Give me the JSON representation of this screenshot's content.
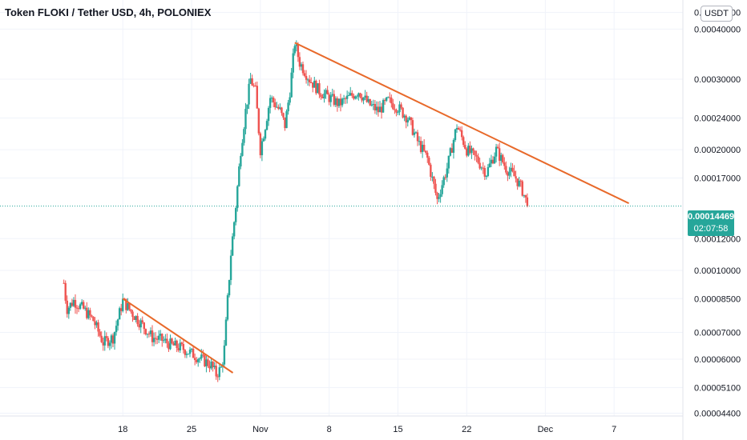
{
  "header": {
    "title": "Token FLOKI / Tether USD, 4h, POLONIEX"
  },
  "currency_button": {
    "label": "USDT"
  },
  "price_tag": {
    "price": "0.00014469",
    "countdown": "02:07:58",
    "color": "#26a69a"
  },
  "colors": {
    "up": "#26a69a",
    "down": "#ef5350",
    "trendline": "#e8692a",
    "grid": "#f0f3fa"
  },
  "chart_data": {
    "type": "candlestick",
    "symbol": "Token FLOKI / Tether USD",
    "interval": "4h",
    "exchange": "POLONIEX",
    "y_scale": "log",
    "y_ticks": [
      "0.00044000",
      "0.00040000",
      "0.00030000",
      "0.00024000",
      "0.00020000",
      "0.00017000",
      "0.00012000",
      "0.00010000",
      "0.00008500",
      "0.00007000",
      "0.00006000",
      "0.00005100",
      "0.00004400"
    ],
    "y_tick_values": [
      0.00044,
      0.0004,
      0.0003,
      0.00024,
      0.0002,
      0.00017,
      0.00012,
      0.0001,
      8.5e-05,
      7e-05,
      6e-05,
      5.1e-05,
      4.4e-05
    ],
    "x_ticks": [
      "18",
      "25",
      "Nov",
      "8",
      "15",
      "22",
      "Dec",
      "7"
    ],
    "x_tick_days": [
      18,
      25,
      32,
      39,
      46,
      53,
      61,
      68
    ],
    "ylim": [
      4.33e-05,
      0.00046
    ],
    "xlim_days": [
      5.5,
      75.0
    ],
    "last_price": 0.00014469,
    "trendlines": [
      {
        "from": {
          "day": 18.0,
          "price": 8.5e-05
        },
        "to": {
          "day": 29.2,
          "price": 5.55e-05
        }
      },
      {
        "from": {
          "day": 35.5,
          "price": 0.00037
        },
        "to": {
          "day": 69.5,
          "price": 0.000147
        }
      }
    ],
    "price_path": [
      [
        12.0,
        9.3e-05
      ],
      [
        12.3,
        8e-05
      ],
      [
        13.0,
        8.4e-05
      ],
      [
        14.0,
        8e-05
      ],
      [
        15.0,
        7.5e-05
      ],
      [
        16.0,
        6.6e-05
      ],
      [
        17.0,
        6.8e-05
      ],
      [
        18.0,
        8.4e-05
      ],
      [
        19.0,
        7.8e-05
      ],
      [
        20.0,
        7.3e-05
      ],
      [
        21.0,
        6.8e-05
      ],
      [
        22.0,
        6.7e-05
      ],
      [
        23.0,
        6.5e-05
      ],
      [
        24.0,
        6.4e-05
      ],
      [
        25.0,
        6.2e-05
      ],
      [
        26.0,
        6e-05
      ],
      [
        27.0,
        5.8e-05
      ],
      [
        27.5,
        5.5e-05
      ],
      [
        28.0,
        5.7e-05
      ],
      [
        28.3,
        6.2e-05
      ],
      [
        28.6,
        8e-05
      ],
      [
        29.0,
        0.00011
      ],
      [
        29.5,
        0.000145
      ],
      [
        30.0,
        0.0002
      ],
      [
        30.5,
        0.00025
      ],
      [
        31.0,
        0.0003
      ],
      [
        31.5,
        0.00028
      ],
      [
        32.0,
        0.0002
      ],
      [
        32.5,
        0.00023
      ],
      [
        33.0,
        0.00027
      ],
      [
        34.0,
        0.00025
      ],
      [
        34.5,
        0.00023
      ],
      [
        35.0,
        0.00028
      ],
      [
        35.5,
        0.00037
      ],
      [
        36.0,
        0.00033
      ],
      [
        37.0,
        0.0003
      ],
      [
        38.0,
        0.00028
      ],
      [
        39.0,
        0.00027
      ],
      [
        40.0,
        0.00026
      ],
      [
        41.0,
        0.00027
      ],
      [
        42.0,
        0.00028
      ],
      [
        43.0,
        0.00026
      ],
      [
        44.0,
        0.00025
      ],
      [
        45.0,
        0.000265
      ],
      [
        46.0,
        0.000255
      ],
      [
        47.0,
        0.00024
      ],
      [
        48.0,
        0.00021
      ],
      [
        49.0,
        0.00019
      ],
      [
        50.0,
        0.00015
      ],
      [
        51.0,
        0.00018
      ],
      [
        52.0,
        0.00023
      ],
      [
        53.0,
        0.0002
      ],
      [
        54.0,
        0.00019
      ],
      [
        55.0,
        0.000175
      ],
      [
        56.0,
        0.0002
      ],
      [
        57.0,
        0.00018
      ],
      [
        58.0,
        0.00017
      ],
      [
        58.6,
        0.00016
      ],
      [
        59.0,
        0.00015
      ],
      [
        59.3,
        0.000145
      ]
    ]
  }
}
